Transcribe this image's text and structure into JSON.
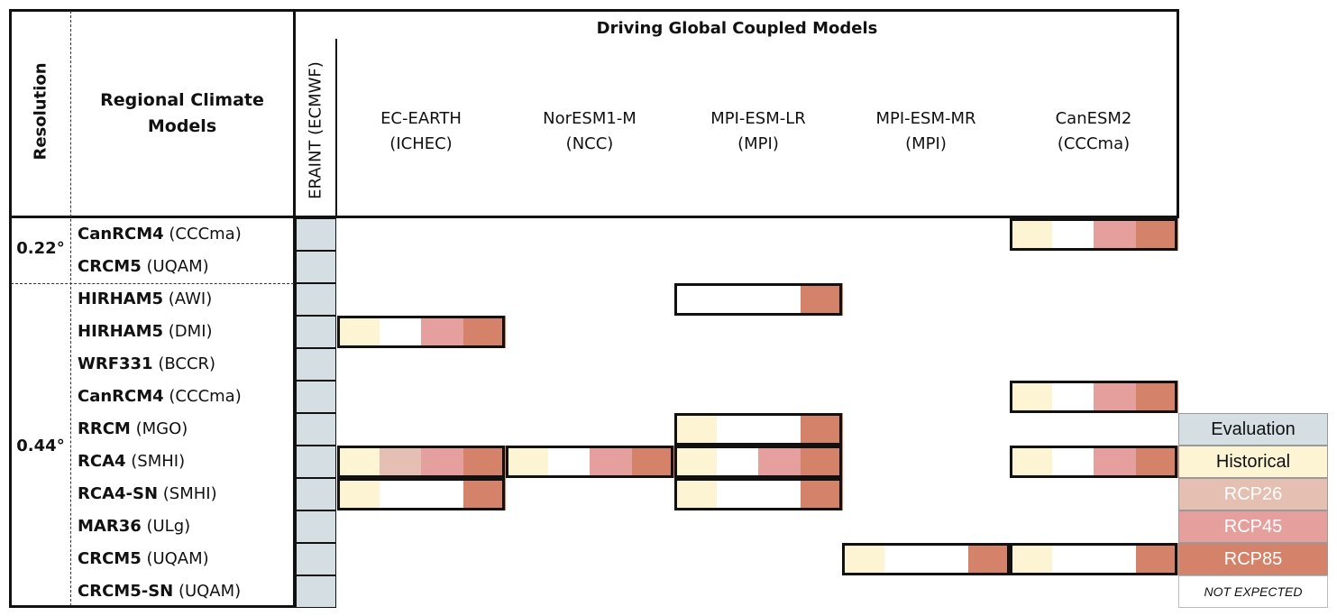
{
  "header": {
    "resolution_label": "Resolution",
    "rcm_title": "Regional Climate\nModels",
    "gcm_title": "Driving Global Coupled Models",
    "eraint_label": "ERAINT (ECMWF)",
    "gcms": [
      {
        "name": "EC-EARTH",
        "inst": "(ICHEC)"
      },
      {
        "name": "NorESM1-M",
        "inst": "(NCC)"
      },
      {
        "name": "MPI-ESM-LR",
        "inst": "(MPI)"
      },
      {
        "name": "MPI-ESM-MR",
        "inst": "(MPI)"
      },
      {
        "name": "CanESM2",
        "inst": "(CCCma)"
      }
    ]
  },
  "resolutions": [
    "0.22°",
    "0.44°"
  ],
  "rcms": [
    {
      "name": "CanRCM4",
      "inst": "(CCCma)",
      "res": "0.22°"
    },
    {
      "name": "CRCM5",
      "inst": "(UQAM)",
      "res": "0.22°"
    },
    {
      "name": "HIRHAM5",
      "inst": "(AWI)",
      "res": "0.44°"
    },
    {
      "name": "HIRHAM5",
      "inst": "(DMI)",
      "res": "0.44°"
    },
    {
      "name": "WRF331",
      "inst": "(BCCR)",
      "res": "0.44°"
    },
    {
      "name": "CanRCM4",
      "inst": "(CCCma)",
      "res": "0.44°"
    },
    {
      "name": "RRCM",
      "inst": "(MGO)",
      "res": "0.44°"
    },
    {
      "name": "RCA4",
      "inst": "(SMHI)",
      "res": "0.44°"
    },
    {
      "name": "RCA4-SN",
      "inst": "(SMHI)",
      "res": "0.44°"
    },
    {
      "name": "MAR36",
      "inst": "(ULg)",
      "res": "0.44°"
    },
    {
      "name": "CRCM5",
      "inst": "(UQAM)",
      "res": "0.44°"
    },
    {
      "name": "CRCM5-SN",
      "inst": "(UQAM)",
      "res": "0.44°"
    }
  ],
  "matrix": [
    {
      "rcm": 0,
      "gcm": 4,
      "cells": [
        "historical",
        "none",
        "rcp45",
        "rcp85"
      ]
    },
    {
      "rcm": 2,
      "gcm": 2,
      "cells": [
        "none",
        "none",
        "none",
        "rcp85"
      ]
    },
    {
      "rcm": 3,
      "gcm": 0,
      "cells": [
        "historical",
        "none",
        "rcp45",
        "rcp85"
      ]
    },
    {
      "rcm": 5,
      "gcm": 4,
      "cells": [
        "historical",
        "none",
        "rcp45",
        "rcp85"
      ]
    },
    {
      "rcm": 6,
      "gcm": 2,
      "cells": [
        "historical",
        "none",
        "none",
        "rcp85"
      ]
    },
    {
      "rcm": 7,
      "gcm": 0,
      "cells": [
        "historical",
        "rcp26",
        "rcp45",
        "rcp85"
      ]
    },
    {
      "rcm": 7,
      "gcm": 1,
      "cells": [
        "historical",
        "none",
        "rcp45",
        "rcp85"
      ]
    },
    {
      "rcm": 7,
      "gcm": 2,
      "cells": [
        "historical",
        "none",
        "rcp45",
        "rcp85"
      ]
    },
    {
      "rcm": 7,
      "gcm": 4,
      "cells": [
        "historical",
        "none",
        "rcp45",
        "rcp85"
      ]
    },
    {
      "rcm": 8,
      "gcm": 0,
      "cells": [
        "historical",
        "none",
        "none",
        "rcp85"
      ]
    },
    {
      "rcm": 8,
      "gcm": 2,
      "cells": [
        "historical",
        "none",
        "none",
        "rcp85"
      ]
    },
    {
      "rcm": 10,
      "gcm": 3,
      "cells": [
        "historical",
        "none",
        "none",
        "rcp85"
      ]
    },
    {
      "rcm": 10,
      "gcm": 4,
      "cells": [
        "historical",
        "none",
        "none",
        "rcp85"
      ]
    }
  ],
  "legend": [
    {
      "key": "evaluation",
      "label": "Evaluation",
      "color": "#d4dee3",
      "text_color": "#111111"
    },
    {
      "key": "historical",
      "label": "Historical",
      "color": "#fcf4d2",
      "text_color": "#111111"
    },
    {
      "key": "rcp26",
      "label": "RCP26",
      "color": "#e4bfb2",
      "text_color": "#ffffff"
    },
    {
      "key": "rcp45",
      "label": "RCP45",
      "color": "#e5a09e",
      "text_color": "#ffffff"
    },
    {
      "key": "rcp85",
      "label": "RCP85",
      "color": "#d4836a",
      "text_color": "#ffffff"
    },
    {
      "key": "not_expected",
      "label": "NOT EXPECTED",
      "color": "#ffffff",
      "text_color": "#111111"
    }
  ]
}
